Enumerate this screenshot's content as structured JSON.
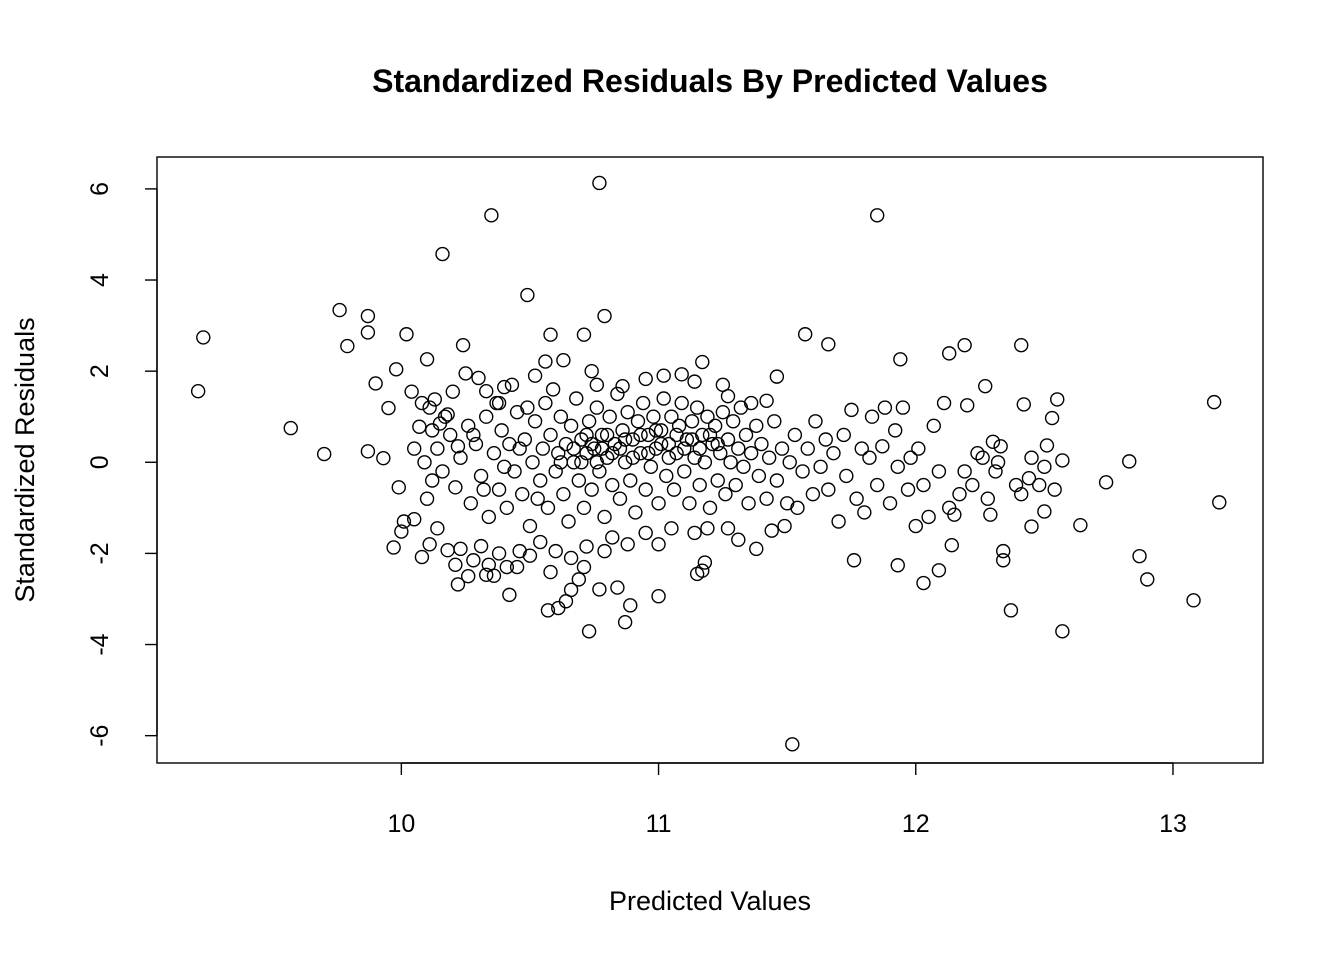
{
  "chart_data": {
    "type": "scatter",
    "title": "Standardized Residuals By Predicted Values",
    "xlabel": "Predicted Values",
    "ylabel": "Standardized Residuals",
    "xlim": [
      9.05,
      13.35
    ],
    "ylim": [
      -6.6,
      6.7
    ],
    "xticks": [
      {
        "value": 10,
        "label": "10"
      },
      {
        "value": 11,
        "label": "11"
      },
      {
        "value": 12,
        "label": "12"
      },
      {
        "value": 13,
        "label": "13"
      }
    ],
    "yticks": [
      {
        "value": -6,
        "label": "-6"
      },
      {
        "value": -4,
        "label": "-4"
      },
      {
        "value": -2,
        "label": "-2"
      },
      {
        "value": 0,
        "label": "0"
      },
      {
        "value": 2,
        "label": "2"
      },
      {
        "value": 4,
        "label": "4"
      },
      {
        "value": 6,
        "label": "6"
      }
    ],
    "grid": false,
    "marker": "open-circle",
    "points": [
      [
        9.21,
        1.56
      ],
      [
        9.23,
        2.74
      ],
      [
        9.57,
        0.75
      ],
      [
        9.7,
        0.18
      ],
      [
        9.76,
        3.34
      ],
      [
        9.79,
        2.55
      ],
      [
        9.87,
        3.21
      ],
      [
        9.87,
        2.85
      ],
      [
        9.87,
        0.24
      ],
      [
        9.9,
        1.73
      ],
      [
        9.93,
        0.09
      ],
      [
        9.95,
        1.19
      ],
      [
        9.97,
        -1.87
      ],
      [
        9.98,
        2.04
      ],
      [
        9.99,
        -0.55
      ],
      [
        10.02,
        2.81
      ],
      [
        10.1,
        2.26
      ],
      [
        10.16,
        4.57
      ],
      [
        10.35,
        5.42
      ],
      [
        10.49,
        3.67
      ],
      [
        10.77,
        6.13
      ],
      [
        10.79,
        3.21
      ],
      [
        11.85,
        5.42
      ],
      [
        11.52,
        -6.19
      ],
      [
        10.73,
        -3.71
      ],
      [
        10.57,
        -3.25
      ],
      [
        10.61,
        -3.2
      ],
      [
        10.89,
        -3.14
      ],
      [
        10.87,
        -3.51
      ],
      [
        11.0,
        -2.94
      ],
      [
        10.84,
        -2.75
      ],
      [
        10.77,
        -2.79
      ],
      [
        10.66,
        -2.8
      ],
      [
        10.64,
        -3.05
      ],
      [
        10.42,
        -2.91
      ],
      [
        10.22,
        -2.68
      ],
      [
        10.26,
        -2.5
      ],
      [
        10.33,
        -2.47
      ],
      [
        10.36,
        -2.49
      ],
      [
        10.45,
        -2.3
      ],
      [
        10.58,
        -2.41
      ],
      [
        10.69,
        -2.57
      ],
      [
        10.71,
        -2.3
      ],
      [
        11.15,
        -2.45
      ],
      [
        11.18,
        -2.2
      ],
      [
        11.17,
        -2.38
      ],
      [
        11.57,
        2.81
      ],
      [
        11.66,
        2.59
      ],
      [
        12.19,
        2.57
      ],
      [
        12.13,
        2.39
      ],
      [
        12.41,
        2.57
      ],
      [
        11.94,
        2.26
      ],
      [
        12.27,
        1.67
      ],
      [
        12.42,
        1.27
      ],
      [
        12.55,
        1.38
      ],
      [
        13.16,
        1.32
      ],
      [
        13.18,
        -0.88
      ],
      [
        13.08,
        -3.03
      ],
      [
        12.87,
        -2.06
      ],
      [
        12.9,
        -2.57
      ],
      [
        12.83,
        0.02
      ],
      [
        12.74,
        -0.44
      ],
      [
        12.64,
        -1.38
      ],
      [
        12.57,
        -3.71
      ],
      [
        12.37,
        -3.25
      ],
      [
        12.34,
        -1.95
      ],
      [
        12.34,
        -2.15
      ],
      [
        12.03,
        -2.65
      ],
      [
        12.09,
        -2.37
      ],
      [
        12.14,
        -1.82
      ],
      [
        11.76,
        -2.15
      ],
      [
        11.93,
        -2.26
      ],
      [
        12.57,
        0.04
      ],
      [
        12.51,
        0.37
      ],
      [
        12.53,
        0.97
      ],
      [
        12.5,
        -1.08
      ],
      [
        12.45,
        -1.41
      ],
      [
        10.04,
        1.55
      ],
      [
        10.07,
        0.78
      ],
      [
        10.08,
        1.3
      ],
      [
        10.11,
        1.2
      ],
      [
        10.13,
        1.38
      ],
      [
        10.15,
        0.85
      ],
      [
        10.18,
        1.05
      ],
      [
        10.2,
        1.55
      ],
      [
        10.24,
        2.57
      ],
      [
        10.25,
        1.95
      ],
      [
        10.3,
        1.85
      ],
      [
        10.33,
        1.56
      ],
      [
        10.38,
        1.3
      ],
      [
        10.4,
        1.65
      ],
      [
        10.43,
        1.7
      ],
      [
        10.52,
        1.9
      ],
      [
        10.56,
        2.21
      ],
      [
        10.58,
        2.8
      ],
      [
        10.63,
        2.24
      ],
      [
        10.71,
        2.8
      ],
      [
        10.74,
        2.0
      ],
      [
        10.76,
        1.7
      ],
      [
        10.86,
        1.67
      ],
      [
        10.95,
        1.83
      ],
      [
        11.02,
        1.9
      ],
      [
        11.09,
        1.93
      ],
      [
        11.17,
        2.2
      ],
      [
        11.14,
        1.77
      ],
      [
        11.25,
        1.7
      ],
      [
        11.27,
        1.45
      ],
      [
        11.36,
        1.3
      ],
      [
        11.46,
        1.88
      ],
      [
        11.42,
        1.35
      ],
      [
        10.01,
        -1.3
      ],
      [
        10.0,
        -1.52
      ],
      [
        10.05,
        -1.25
      ],
      [
        10.08,
        -2.08
      ],
      [
        10.11,
        -1.8
      ],
      [
        10.14,
        -1.45
      ],
      [
        10.18,
        -1.93
      ],
      [
        10.21,
        -2.25
      ],
      [
        10.23,
        -1.9
      ],
      [
        10.28,
        -2.15
      ],
      [
        10.31,
        -1.84
      ],
      [
        10.34,
        -2.25
      ],
      [
        10.38,
        -2.0
      ],
      [
        10.41,
        -2.3
      ],
      [
        10.46,
        -1.95
      ],
      [
        10.5,
        -2.05
      ],
      [
        10.54,
        -1.75
      ],
      [
        10.6,
        -1.95
      ],
      [
        10.66,
        -2.1
      ],
      [
        10.72,
        -1.85
      ],
      [
        10.79,
        -1.95
      ],
      [
        10.82,
        -1.65
      ],
      [
        10.88,
        -1.8
      ],
      [
        10.95,
        -1.55
      ],
      [
        11.0,
        -1.8
      ],
      [
        11.05,
        -1.45
      ],
      [
        11.14,
        -1.55
      ],
      [
        11.19,
        -1.45
      ],
      [
        11.27,
        -1.45
      ],
      [
        11.31,
        -1.7
      ],
      [
        11.38,
        -1.9
      ],
      [
        11.44,
        -1.5
      ],
      [
        11.49,
        -1.4
      ],
      [
        10.05,
        0.3
      ],
      [
        10.09,
        0.0
      ],
      [
        10.12,
        -0.4
      ],
      [
        10.1,
        -0.8
      ],
      [
        10.14,
        0.3
      ],
      [
        10.16,
        -0.2
      ],
      [
        10.19,
        0.6
      ],
      [
        10.21,
        -0.55
      ],
      [
        10.23,
        0.1
      ],
      [
        10.26,
        0.8
      ],
      [
        10.27,
        -0.9
      ],
      [
        10.29,
        0.4
      ],
      [
        10.31,
        -0.3
      ],
      [
        10.33,
        1.0
      ],
      [
        10.34,
        -1.2
      ],
      [
        10.36,
        0.2
      ],
      [
        10.38,
        -0.6
      ],
      [
        10.39,
        0.7
      ],
      [
        10.41,
        -1.0
      ],
      [
        10.42,
        0.4
      ],
      [
        10.44,
        -0.2
      ],
      [
        10.45,
        1.1
      ],
      [
        10.47,
        -0.7
      ],
      [
        10.48,
        0.5
      ],
      [
        10.5,
        -1.4
      ],
      [
        10.51,
        0.0
      ],
      [
        10.52,
        0.9
      ],
      [
        10.54,
        -0.4
      ],
      [
        10.55,
        0.3
      ],
      [
        10.56,
        1.3
      ],
      [
        10.57,
        -1.0
      ],
      [
        10.58,
        0.6
      ],
      [
        10.6,
        -0.2
      ],
      [
        10.61,
        0.2
      ],
      [
        10.62,
        1.0
      ],
      [
        10.63,
        -0.7
      ],
      [
        10.64,
        0.4
      ],
      [
        10.65,
        -1.3
      ],
      [
        10.66,
        0.8
      ],
      [
        10.67,
        0.0
      ],
      [
        10.68,
        1.4
      ],
      [
        10.69,
        -0.4
      ],
      [
        10.7,
        0.5
      ],
      [
        10.71,
        -1.0
      ],
      [
        10.72,
        0.2
      ],
      [
        10.73,
        0.9
      ],
      [
        10.74,
        -0.6
      ],
      [
        10.75,
        0.3
      ],
      [
        10.76,
        1.2
      ],
      [
        10.77,
        -0.2
      ],
      [
        10.78,
        0.6
      ],
      [
        10.79,
        -1.2
      ],
      [
        10.8,
        0.1
      ],
      [
        10.81,
        1.0
      ],
      [
        10.82,
        -0.5
      ],
      [
        10.83,
        0.4
      ],
      [
        10.84,
        1.5
      ],
      [
        10.85,
        -0.8
      ],
      [
        10.86,
        0.7
      ],
      [
        10.87,
        0.0
      ],
      [
        10.88,
        1.1
      ],
      [
        10.89,
        -0.4
      ],
      [
        10.9,
        0.5
      ],
      [
        10.91,
        -1.1
      ],
      [
        10.92,
        0.9
      ],
      [
        10.93,
        0.2
      ],
      [
        10.94,
        1.3
      ],
      [
        10.95,
        -0.6
      ],
      [
        10.96,
        0.6
      ],
      [
        10.97,
        -0.1
      ],
      [
        10.98,
        1.0
      ],
      [
        10.99,
        0.3
      ],
      [
        11.0,
        -0.9
      ],
      [
        11.01,
        0.7
      ],
      [
        11.02,
        1.4
      ],
      [
        11.03,
        -0.3
      ],
      [
        11.04,
        0.4
      ],
      [
        11.05,
        1.0
      ],
      [
        11.06,
        -0.6
      ],
      [
        11.07,
        0.2
      ],
      [
        11.08,
        0.8
      ],
      [
        11.09,
        1.3
      ],
      [
        11.1,
        -0.2
      ],
      [
        11.11,
        0.5
      ],
      [
        11.12,
        -0.9
      ],
      [
        11.13,
        0.9
      ],
      [
        11.14,
        0.1
      ],
      [
        11.15,
        1.2
      ],
      [
        11.16,
        -0.5
      ],
      [
        11.17,
        0.6
      ],
      [
        11.18,
        0.0
      ],
      [
        11.19,
        1.0
      ],
      [
        11.2,
        -1.0
      ],
      [
        11.21,
        0.4
      ],
      [
        11.22,
        0.8
      ],
      [
        11.23,
        -0.4
      ],
      [
        11.24,
        0.2
      ],
      [
        11.25,
        1.1
      ],
      [
        11.26,
        -0.7
      ],
      [
        11.27,
        0.5
      ],
      [
        11.28,
        0.0
      ],
      [
        11.29,
        0.9
      ],
      [
        11.3,
        -0.5
      ],
      [
        11.31,
        0.3
      ],
      [
        11.32,
        1.2
      ],
      [
        11.33,
        -0.1
      ],
      [
        11.34,
        0.6
      ],
      [
        11.35,
        -0.9
      ],
      [
        11.36,
        0.2
      ],
      [
        11.38,
        0.8
      ],
      [
        11.39,
        -0.3
      ],
      [
        11.4,
        0.4
      ],
      [
        11.42,
        -0.8
      ],
      [
        11.43,
        0.1
      ],
      [
        11.45,
        0.9
      ],
      [
        11.46,
        -0.4
      ],
      [
        11.48,
        0.3
      ],
      [
        11.5,
        -0.9
      ],
      [
        11.51,
        0.0
      ],
      [
        11.53,
        0.6
      ],
      [
        11.54,
        -1.0
      ],
      [
        11.56,
        -0.2
      ],
      [
        11.58,
        0.3
      ],
      [
        11.6,
        -0.7
      ],
      [
        11.61,
        0.9
      ],
      [
        11.63,
        -0.1
      ],
      [
        11.65,
        0.5
      ],
      [
        11.66,
        -0.6
      ],
      [
        11.68,
        0.2
      ],
      [
        11.7,
        -1.3
      ],
      [
        11.72,
        0.6
      ],
      [
        11.73,
        -0.3
      ],
      [
        11.75,
        1.15
      ],
      [
        11.77,
        -0.8
      ],
      [
        11.79,
        0.3
      ],
      [
        11.8,
        -1.1
      ],
      [
        11.82,
        0.1
      ],
      [
        11.83,
        1.0
      ],
      [
        11.85,
        -0.5
      ],
      [
        11.87,
        0.35
      ],
      [
        11.88,
        1.2
      ],
      [
        11.9,
        -0.9
      ],
      [
        11.92,
        0.7
      ],
      [
        11.93,
        -0.1
      ],
      [
        11.95,
        1.2
      ],
      [
        11.97,
        -0.6
      ],
      [
        11.98,
        0.1
      ],
      [
        12.0,
        -1.4
      ],
      [
        12.01,
        0.3
      ],
      [
        12.03,
        -0.5
      ],
      [
        12.05,
        -1.2
      ],
      [
        12.07,
        0.8
      ],
      [
        12.09,
        -0.2
      ],
      [
        12.11,
        1.3
      ],
      [
        12.13,
        -1.0
      ],
      [
        12.15,
        -1.15
      ],
      [
        12.17,
        -0.7
      ],
      [
        12.19,
        -0.2
      ],
      [
        12.2,
        1.25
      ],
      [
        12.22,
        -0.5
      ],
      [
        12.24,
        0.2
      ],
      [
        12.26,
        0.1
      ],
      [
        12.28,
        -0.8
      ],
      [
        12.29,
        -1.15
      ],
      [
        12.3,
        0.45
      ],
      [
        12.31,
        -0.2
      ],
      [
        12.32,
        0.0
      ],
      [
        12.33,
        0.35
      ],
      [
        12.39,
        -0.5
      ],
      [
        12.41,
        -0.7
      ],
      [
        12.44,
        -0.35
      ],
      [
        12.45,
        0.1
      ],
      [
        12.48,
        -0.5
      ],
      [
        12.5,
        -0.1
      ],
      [
        12.54,
        -0.6
      ],
      [
        10.12,
        0.7
      ],
      [
        10.17,
        1.0
      ],
      [
        10.22,
        0.35
      ],
      [
        10.28,
        0.6
      ],
      [
        10.32,
        -0.6
      ],
      [
        10.37,
        1.3
      ],
      [
        10.4,
        -0.1
      ],
      [
        10.46,
        0.3
      ],
      [
        10.49,
        1.2
      ],
      [
        10.53,
        -0.8
      ],
      [
        10.59,
        1.6
      ],
      [
        10.62,
        0.0
      ],
      [
        10.67,
        0.3
      ],
      [
        10.7,
        0.0
      ],
      [
        10.72,
        0.6
      ],
      [
        10.74,
        0.4
      ],
      [
        10.76,
        0.0
      ],
      [
        10.78,
        0.3
      ],
      [
        10.8,
        0.6
      ],
      [
        10.82,
        0.2
      ],
      [
        10.85,
        0.3
      ],
      [
        10.87,
        0.5
      ],
      [
        10.9,
        0.1
      ],
      [
        10.93,
        0.6
      ],
      [
        10.96,
        0.2
      ],
      [
        10.99,
        0.7
      ],
      [
        11.01,
        0.4
      ],
      [
        11.04,
        0.1
      ],
      [
        11.07,
        0.6
      ],
      [
        11.1,
        0.3
      ],
      [
        11.13,
        0.5
      ],
      [
        11.16,
        0.3
      ],
      [
        11.2,
        0.6
      ],
      [
        11.23,
        0.4
      ]
    ]
  }
}
